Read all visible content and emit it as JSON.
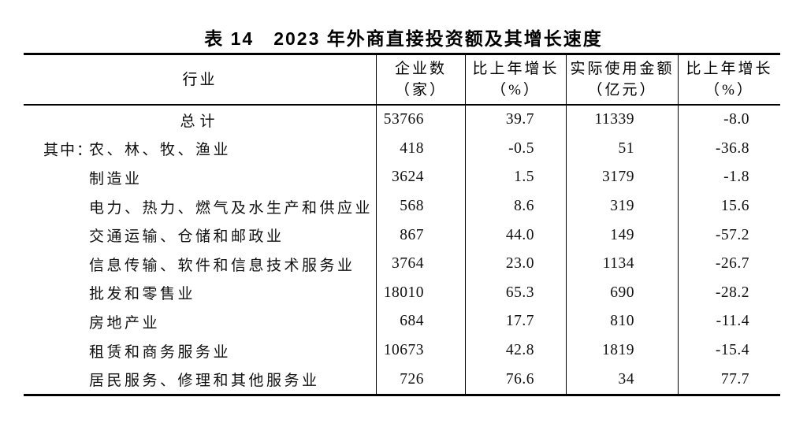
{
  "title": "表 14　2023 年外商直接投资额及其增长速度",
  "table": {
    "header": {
      "industry": "行业",
      "col_enterprises_line1": "企业数",
      "col_enterprises_line2": "（家）",
      "col_growth1_line1": "比上年增长",
      "col_growth1_line2": "（%）",
      "col_amount_line1": "实际使用金额",
      "col_amount_line2": "（亿元）",
      "col_growth2_line1": "比上年增长",
      "col_growth2_line2": "（%）"
    },
    "rows": [
      {
        "prefix": "",
        "label": "总计",
        "values": [
          "53766",
          "39.7",
          "11339",
          "-8.0"
        ]
      },
      {
        "prefix": "其中：",
        "label": "农、林、牧、渔业",
        "values": [
          "418",
          "-0.5",
          "51",
          "-36.8"
        ]
      },
      {
        "prefix": "",
        "label": "制造业",
        "values": [
          "3624",
          "1.5",
          "3179",
          "-1.8"
        ]
      },
      {
        "prefix": "",
        "label": "电力、热力、燃气及水生产和供应业",
        "values": [
          "568",
          "8.6",
          "319",
          "15.6"
        ]
      },
      {
        "prefix": "",
        "label": "交通运输、仓储和邮政业",
        "values": [
          "867",
          "44.0",
          "149",
          "-57.2"
        ]
      },
      {
        "prefix": "",
        "label": "信息传输、软件和信息技术服务业",
        "values": [
          "3764",
          "23.0",
          "1134",
          "-26.7"
        ]
      },
      {
        "prefix": "",
        "label": "批发和零售业",
        "values": [
          "18010",
          "65.3",
          "690",
          "-28.2"
        ]
      },
      {
        "prefix": "",
        "label": "房地产业",
        "values": [
          "684",
          "17.7",
          "810",
          "-11.4"
        ]
      },
      {
        "prefix": "",
        "label": "租赁和商务服务业",
        "values": [
          "10673",
          "42.8",
          "1819",
          "-15.4"
        ]
      },
      {
        "prefix": "",
        "label": "居民服务、修理和其他服务业",
        "values": [
          "726",
          "76.6",
          "34",
          "77.7"
        ]
      }
    ]
  }
}
